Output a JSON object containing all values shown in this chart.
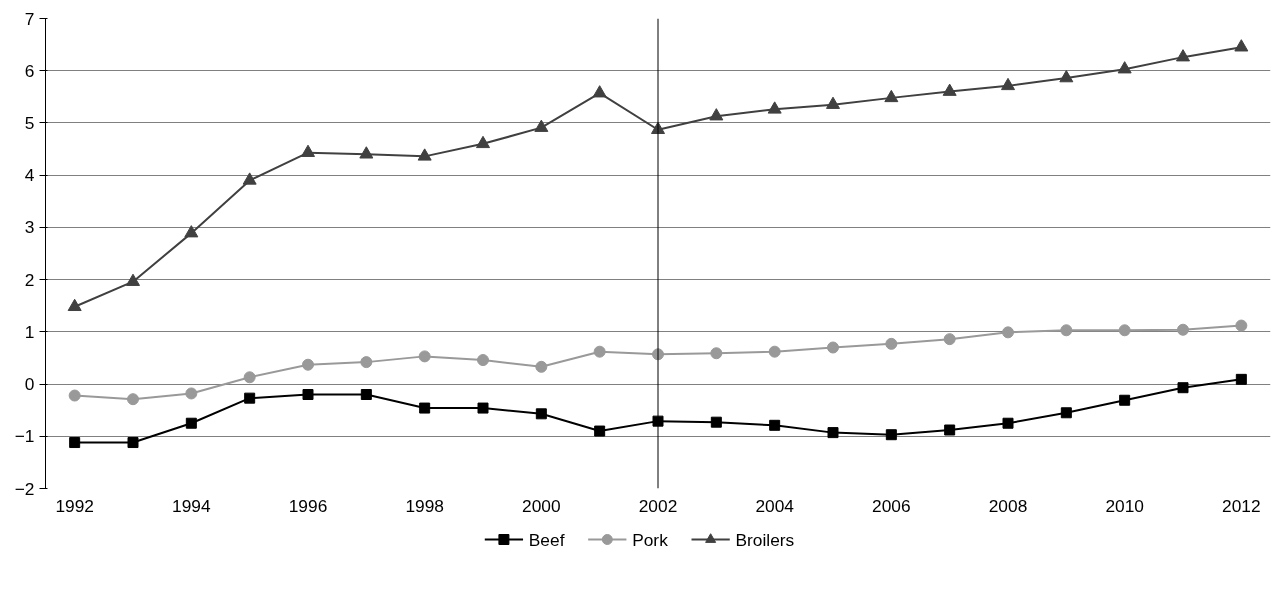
{
  "chart_data": {
    "type": "line",
    "x": [
      1992,
      1993,
      1994,
      1995,
      1996,
      1997,
      1998,
      1999,
      2000,
      2001,
      2002,
      2003,
      2004,
      2005,
      2006,
      2007,
      2008,
      2009,
      2010,
      2011,
      2012
    ],
    "series": [
      {
        "name": "Beef",
        "color": "#000000",
        "marker": "square",
        "values": [
          -1.12,
          -1.12,
          -0.75,
          -0.27,
          -0.2,
          -0.2,
          -0.46,
          -0.46,
          -0.57,
          -0.9,
          -0.71,
          -0.73,
          -0.79,
          -0.93,
          -0.97,
          -0.88,
          -0.75,
          -0.55,
          -0.31,
          -0.07,
          0.09
        ]
      },
      {
        "name": "Pork",
        "color": "#999999",
        "marker": "circle",
        "values": [
          -0.22,
          -0.29,
          -0.18,
          0.13,
          0.37,
          0.42,
          0.53,
          0.46,
          0.33,
          0.62,
          0.57,
          0.59,
          0.62,
          0.7,
          0.77,
          0.86,
          0.99,
          1.03,
          1.03,
          1.04,
          1.12
        ]
      },
      {
        "name": "Broilers",
        "color": "#404040",
        "marker": "triangle",
        "values": [
          1.48,
          1.96,
          2.89,
          3.9,
          4.43,
          4.4,
          4.36,
          4.6,
          4.91,
          5.57,
          4.87,
          5.13,
          5.26,
          5.35,
          5.48,
          5.6,
          5.71,
          5.86,
          6.03,
          6.26,
          6.45
        ]
      }
    ],
    "xlim": [
      1991.5,
      2012.5
    ],
    "xticks": [
      1992,
      1994,
      1996,
      1998,
      2000,
      2002,
      2004,
      2006,
      2008,
      2010,
      2012
    ],
    "ylim": [
      -2,
      7
    ],
    "yticks": [
      -2,
      -1,
      0,
      1,
      2,
      3,
      4,
      5,
      6,
      7
    ],
    "ref_lines": [
      {
        "axis": "x",
        "value": 2002,
        "color": "#000000"
      }
    ],
    "grid": "y",
    "legend": "bottom",
    "line_style": "solid"
  }
}
